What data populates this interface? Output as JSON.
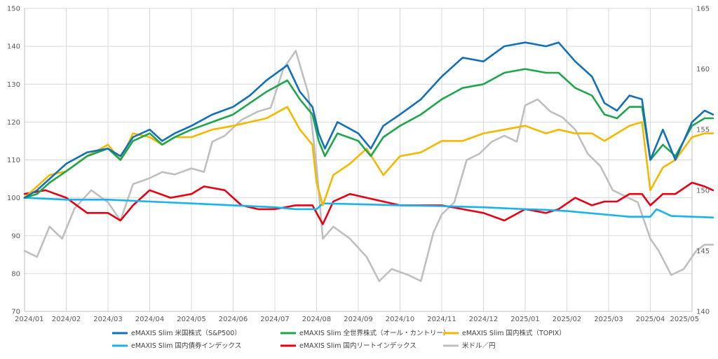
{
  "chart_data": {
    "type": "line",
    "x_ticks": [
      "2024/01",
      "2024/02",
      "2024/03",
      "2024/04",
      "2024/05",
      "2024/06",
      "2024/07",
      "2024/08",
      "2024/09",
      "2024/10",
      "2024/11",
      "2024/12",
      "2025/01",
      "2025/02",
      "2025/03",
      "2025/04",
      "2025/05"
    ],
    "y_left": {
      "min": 70,
      "max": 150,
      "step": 10,
      "ticks": [
        "70",
        "80",
        "90",
        "100",
        "110",
        "120",
        "130",
        "140",
        "150"
      ]
    },
    "y_right": {
      "min": 140,
      "max": 165,
      "step": 5,
      "ticks": [
        "140",
        "145",
        "150",
        "155",
        "160",
        "165"
      ]
    },
    "grid": true,
    "legend_position": "bottom",
    "series": [
      {
        "name": "eMAXIS Slim 米国株式（S&P500）",
        "axis": "left",
        "color": "#1170b8",
        "points": [
          [
            0,
            100
          ],
          [
            0.3,
            102
          ],
          [
            0.6,
            105
          ],
          [
            1,
            109
          ],
          [
            1.5,
            112
          ],
          [
            2,
            113
          ],
          [
            2.3,
            111
          ],
          [
            2.6,
            116
          ],
          [
            3,
            118
          ],
          [
            3.3,
            115
          ],
          [
            3.6,
            117
          ],
          [
            4,
            119
          ],
          [
            4.5,
            122
          ],
          [
            5,
            124
          ],
          [
            5.4,
            127
          ],
          [
            5.8,
            131
          ],
          [
            6.3,
            135
          ],
          [
            6.6,
            128
          ],
          [
            6.9,
            124
          ],
          [
            7.05,
            117
          ],
          [
            7.2,
            113
          ],
          [
            7.5,
            120
          ],
          [
            8,
            117
          ],
          [
            8.3,
            113
          ],
          [
            8.6,
            119
          ],
          [
            9,
            122
          ],
          [
            9.5,
            126
          ],
          [
            10,
            132
          ],
          [
            10.5,
            137
          ],
          [
            11,
            136
          ],
          [
            11.5,
            140
          ],
          [
            12,
            141
          ],
          [
            12.5,
            140
          ],
          [
            12.8,
            141
          ],
          [
            13.2,
            136
          ],
          [
            13.6,
            132
          ],
          [
            13.9,
            125
          ],
          [
            14.2,
            123
          ],
          [
            14.5,
            127
          ],
          [
            14.8,
            126
          ],
          [
            15.0,
            110
          ],
          [
            15.3,
            118
          ],
          [
            15.6,
            110
          ],
          [
            16,
            120
          ],
          [
            16.3,
            123
          ],
          [
            16.5,
            122
          ]
        ]
      },
      {
        "name": "eMAXIS Slim 全世界株式（オール・カントリー）",
        "axis": "left",
        "color": "#1ea64b",
        "points": [
          [
            0,
            100
          ],
          [
            0.3,
            101
          ],
          [
            0.6,
            104
          ],
          [
            1,
            107
          ],
          [
            1.5,
            111
          ],
          [
            2,
            113
          ],
          [
            2.3,
            110
          ],
          [
            2.6,
            115
          ],
          [
            3,
            117
          ],
          [
            3.3,
            114
          ],
          [
            3.6,
            116
          ],
          [
            4,
            118
          ],
          [
            4.5,
            120
          ],
          [
            5,
            122
          ],
          [
            5.4,
            125
          ],
          [
            5.8,
            128
          ],
          [
            6.3,
            131
          ],
          [
            6.6,
            126
          ],
          [
            6.9,
            122
          ],
          [
            7.05,
            115
          ],
          [
            7.2,
            111
          ],
          [
            7.5,
            117
          ],
          [
            8,
            115
          ],
          [
            8.3,
            111
          ],
          [
            8.6,
            116
          ],
          [
            9,
            119
          ],
          [
            9.5,
            122
          ],
          [
            10,
            126
          ],
          [
            10.5,
            129
          ],
          [
            11,
            130
          ],
          [
            11.5,
            133
          ],
          [
            12,
            134
          ],
          [
            12.5,
            133
          ],
          [
            12.8,
            133
          ],
          [
            13.2,
            129
          ],
          [
            13.6,
            127
          ],
          [
            13.9,
            122
          ],
          [
            14.2,
            121
          ],
          [
            14.5,
            124
          ],
          [
            14.8,
            124
          ],
          [
            15.0,
            110
          ],
          [
            15.3,
            114
          ],
          [
            15.6,
            111
          ],
          [
            16,
            119
          ],
          [
            16.3,
            121
          ],
          [
            16.5,
            121
          ]
        ]
      },
      {
        "name": "eMAXIS Slim 国内株式（TOPIX）",
        "axis": "left",
        "color": "#f5b800",
        "points": [
          [
            0,
            100
          ],
          [
            0.3,
            103
          ],
          [
            0.6,
            106
          ],
          [
            1,
            107
          ],
          [
            1.5,
            111
          ],
          [
            2,
            114
          ],
          [
            2.3,
            110
          ],
          [
            2.6,
            117
          ],
          [
            3,
            116
          ],
          [
            3.3,
            114
          ],
          [
            3.6,
            116
          ],
          [
            4,
            116
          ],
          [
            4.5,
            118
          ],
          [
            5,
            119
          ],
          [
            5.4,
            120
          ],
          [
            5.8,
            121
          ],
          [
            6.3,
            124
          ],
          [
            6.6,
            118
          ],
          [
            6.9,
            114
          ],
          [
            7.0,
            104
          ],
          [
            7.15,
            98
          ],
          [
            7.4,
            106
          ],
          [
            7.8,
            109
          ],
          [
            8.2,
            113
          ],
          [
            8.6,
            106
          ],
          [
            9,
            111
          ],
          [
            9.5,
            112
          ],
          [
            10,
            115
          ],
          [
            10.5,
            115
          ],
          [
            11,
            117
          ],
          [
            11.5,
            118
          ],
          [
            12,
            119
          ],
          [
            12.5,
            117
          ],
          [
            12.8,
            118
          ],
          [
            13.2,
            117
          ],
          [
            13.6,
            117
          ],
          [
            13.9,
            115
          ],
          [
            14.2,
            117
          ],
          [
            14.5,
            119
          ],
          [
            14.8,
            120
          ],
          [
            15.0,
            102
          ],
          [
            15.3,
            108
          ],
          [
            15.6,
            110
          ],
          [
            16,
            116
          ],
          [
            16.3,
            117
          ],
          [
            16.5,
            117
          ]
        ]
      },
      {
        "name": "eMAXIS Slim 国内債券インデックス",
        "axis": "left",
        "color": "#19b3ea",
        "points": [
          [
            0,
            100
          ],
          [
            1,
            99.5
          ],
          [
            2,
            99.5
          ],
          [
            3,
            99
          ],
          [
            4,
            98.5
          ],
          [
            5,
            98
          ],
          [
            6,
            97.5
          ],
          [
            6.5,
            97
          ],
          [
            7,
            97
          ],
          [
            7.15,
            98.5
          ],
          [
            8,
            98.3
          ],
          [
            9,
            98
          ],
          [
            10,
            97.8
          ],
          [
            11,
            97.5
          ],
          [
            12,
            97
          ],
          [
            12.5,
            96.8
          ],
          [
            13,
            96.5
          ],
          [
            13.5,
            96
          ],
          [
            14,
            95.5
          ],
          [
            14.5,
            95
          ],
          [
            15,
            95
          ],
          [
            15.15,
            97
          ],
          [
            15.5,
            95.2
          ],
          [
            16,
            95
          ],
          [
            16.5,
            94.8
          ]
        ]
      },
      {
        "name": "eMAXIS Slim 国内リートインデックス",
        "axis": "left",
        "color": "#e60012",
        "points": [
          [
            0,
            101
          ],
          [
            0.5,
            102
          ],
          [
            1,
            100
          ],
          [
            1.5,
            96
          ],
          [
            2,
            96
          ],
          [
            2.3,
            94
          ],
          [
            2.6,
            98
          ],
          [
            3,
            102
          ],
          [
            3.5,
            100
          ],
          [
            4,
            101
          ],
          [
            4.3,
            103
          ],
          [
            4.8,
            102
          ],
          [
            5.2,
            98
          ],
          [
            5.6,
            97
          ],
          [
            6,
            97
          ],
          [
            6.5,
            98
          ],
          [
            6.9,
            98
          ],
          [
            7.05,
            95
          ],
          [
            7.15,
            93
          ],
          [
            7.4,
            99
          ],
          [
            7.8,
            101
          ],
          [
            8.2,
            100
          ],
          [
            8.6,
            99
          ],
          [
            9,
            98
          ],
          [
            9.5,
            98
          ],
          [
            10,
            98
          ],
          [
            10.5,
            97
          ],
          [
            11,
            96
          ],
          [
            11.5,
            94
          ],
          [
            12,
            97
          ],
          [
            12.5,
            96
          ],
          [
            12.8,
            97
          ],
          [
            13.2,
            100
          ],
          [
            13.6,
            98
          ],
          [
            13.9,
            99
          ],
          [
            14.2,
            99
          ],
          [
            14.5,
            101
          ],
          [
            14.8,
            101
          ],
          [
            15.0,
            98
          ],
          [
            15.3,
            101
          ],
          [
            15.6,
            101
          ],
          [
            16,
            104
          ],
          [
            16.3,
            103
          ],
          [
            16.5,
            102
          ]
        ]
      },
      {
        "name": "米ドル／円",
        "axis": "right",
        "color": "#bfbfbf",
        "points": [
          [
            0,
            145
          ],
          [
            0.3,
            144.5
          ],
          [
            0.6,
            147
          ],
          [
            0.9,
            146
          ],
          [
            1.2,
            148.5
          ],
          [
            1.6,
            150
          ],
          [
            2,
            149
          ],
          [
            2.3,
            147.5
          ],
          [
            2.6,
            150.5
          ],
          [
            3,
            151
          ],
          [
            3.3,
            151.5
          ],
          [
            3.6,
            151.3
          ],
          [
            4,
            151.8
          ],
          [
            4.3,
            151.5
          ],
          [
            4.5,
            154
          ],
          [
            4.8,
            154.5
          ],
          [
            5.2,
            155.8
          ],
          [
            5.6,
            156.5
          ],
          [
            5.9,
            156.8
          ],
          [
            6.2,
            160
          ],
          [
            6.5,
            161.5
          ],
          [
            6.8,
            158
          ],
          [
            7,
            152
          ],
          [
            7.15,
            146
          ],
          [
            7.4,
            147
          ],
          [
            7.8,
            146
          ],
          [
            8.2,
            144.5
          ],
          [
            8.5,
            142.5
          ],
          [
            8.8,
            143.5
          ],
          [
            9.2,
            143
          ],
          [
            9.5,
            142.5
          ],
          [
            9.8,
            146.5
          ],
          [
            10,
            148
          ],
          [
            10.3,
            149
          ],
          [
            10.6,
            152.5
          ],
          [
            10.9,
            153
          ],
          [
            11.2,
            154
          ],
          [
            11.5,
            154.5
          ],
          [
            11.8,
            154
          ],
          [
            12,
            157
          ],
          [
            12.3,
            157.5
          ],
          [
            12.6,
            156.5
          ],
          [
            12.9,
            156
          ],
          [
            13.2,
            155
          ],
          [
            13.5,
            153
          ],
          [
            13.8,
            152
          ],
          [
            14.1,
            150
          ],
          [
            14.4,
            149.5
          ],
          [
            14.7,
            149
          ],
          [
            15,
            146
          ],
          [
            15.2,
            145
          ],
          [
            15.5,
            143
          ],
          [
            15.8,
            143.5
          ],
          [
            16.1,
            145
          ],
          [
            16.3,
            145.5
          ],
          [
            16.5,
            145.5
          ]
        ]
      }
    ]
  }
}
